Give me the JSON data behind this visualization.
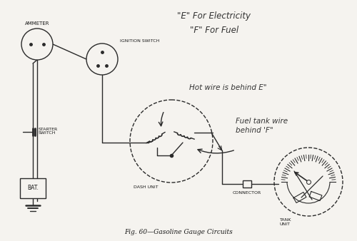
{
  "title": "Fig. 60—Gasoline Gauge Circuits",
  "handwritten_title_line1": "\"E\" For Electricity",
  "handwritten_title_line2": "\"F\" For Fuel",
  "handwritten_note1": "Hot wire is behind E\"",
  "handwritten_note2": "Fuel tank wire\nbehind 'F\"",
  "label_ammeter": "AMMETER",
  "label_ignition": "IGNITION SWITCH",
  "label_starter": "STARTER\nSWITCH",
  "label_bat": "BAT.",
  "label_dash": "DASH UNIT",
  "label_connector": "CONNECTOR",
  "label_tank": "TANK\nUNIT",
  "bg_color": "#f5f3ef",
  "line_color": "#2a2a2a",
  "text_color": "#1a1a1a"
}
